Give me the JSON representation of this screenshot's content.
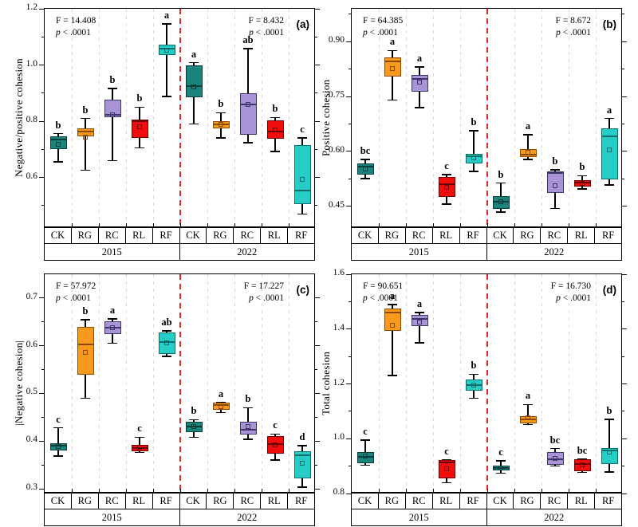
{
  "figure": {
    "treatments": [
      "CK",
      "RG",
      "RC",
      "RL",
      "RF"
    ],
    "years": [
      "2015",
      "2022"
    ],
    "colors": {
      "CK": {
        "fill": "#1a837b",
        "edge": "#093e3a"
      },
      "RG": {
        "fill": "#f8991d",
        "edge": "#8a4a00"
      },
      "RC": {
        "fill": "#a893d6",
        "edge": "#3f3566"
      },
      "RL": {
        "fill": "#f20d0d",
        "edge": "#6e0000"
      },
      "RF": {
        "fill": "#26ccc6",
        "edge": "#0d6e6a"
      }
    },
    "separator_color": "#e02b2b",
    "gridline_color": "#d8d8d8"
  },
  "chart_data": [
    {
      "type": "boxplot",
      "panel_label": "(a)",
      "ylabel": "Negative/positive cohesion",
      "ymin": 0.42,
      "ymax": 1.2,
      "yticks": [
        {
          "v": 0.6,
          "label": "0.6"
        },
        {
          "v": 0.8,
          "label": "0.8"
        },
        {
          "v": 1.0,
          "label": "1.0"
        },
        {
          "v": 1.2,
          "label": "1.2"
        }
      ],
      "stats_left": {
        "F": "F = 14.408",
        "p": "p < .0001"
      },
      "stats_right": {
        "F": "F = 8.432",
        "p": "p < .0001"
      },
      "groups": [
        "2015",
        "2022"
      ],
      "categories": [
        "CK",
        "RG",
        "RC",
        "RL",
        "RF",
        "CK",
        "RG",
        "RC",
        "RL",
        "RF"
      ],
      "boxes": [
        {
          "year": "2015",
          "treatment": "CK",
          "whisker_low": 0.655,
          "q1": 0.7,
          "median": 0.735,
          "q3": 0.746,
          "whisker_high": 0.756,
          "mean": 0.716,
          "letter": "b"
        },
        {
          "year": "2015",
          "treatment": "RG",
          "whisker_low": 0.625,
          "q1": 0.747,
          "median": 0.764,
          "q3": 0.774,
          "whisker_high": 0.81,
          "mean": 0.742,
          "letter": "b"
        },
        {
          "year": "2015",
          "treatment": "RC",
          "whisker_low": 0.66,
          "q1": 0.814,
          "median": 0.822,
          "q3": 0.876,
          "whisker_high": 0.916,
          "mean": 0.82,
          "letter": "b"
        },
        {
          "year": "2015",
          "treatment": "RL",
          "whisker_low": 0.705,
          "q1": 0.74,
          "median": 0.8,
          "q3": 0.806,
          "whisker_high": 0.85,
          "mean": 0.778,
          "letter": "b"
        },
        {
          "year": "2015",
          "treatment": "RF",
          "whisker_low": 0.888,
          "q1": 1.035,
          "median": 1.058,
          "q3": 1.072,
          "whisker_high": 1.146,
          "mean": 1.052,
          "letter": "a"
        },
        {
          "year": "2022",
          "treatment": "CK",
          "whisker_low": 0.79,
          "q1": 0.886,
          "median": 0.924,
          "q3": 1.0,
          "whisker_high": 1.008,
          "mean": 0.92,
          "letter": "a"
        },
        {
          "year": "2022",
          "treatment": "RG",
          "whisker_low": 0.74,
          "q1": 0.775,
          "median": 0.79,
          "q3": 0.801,
          "whisker_high": 0.83,
          "mean": 0.787,
          "letter": "b"
        },
        {
          "year": "2022",
          "treatment": "RC",
          "whisker_low": 0.724,
          "q1": 0.752,
          "median": 0.86,
          "q3": 0.9,
          "whisker_high": 1.058,
          "mean": 0.858,
          "letter": "ab"
        },
        {
          "year": "2022",
          "treatment": "RL",
          "whisker_low": 0.693,
          "q1": 0.738,
          "median": 0.763,
          "q3": 0.803,
          "whisker_high": 0.813,
          "mean": 0.768,
          "letter": "b"
        },
        {
          "year": "2022",
          "treatment": "RF",
          "whisker_low": 0.47,
          "q1": 0.505,
          "median": 0.553,
          "q3": 0.715,
          "whisker_high": 0.74,
          "mean": 0.593,
          "letter": "c"
        }
      ]
    },
    {
      "type": "boxplot",
      "panel_label": "(b)",
      "ylabel": "Positive cohesion",
      "ymin": 0.39,
      "ymax": 0.99,
      "yticks": [
        {
          "v": 0.45,
          "label": "0.45"
        },
        {
          "v": 0.6,
          "label": "0.60"
        },
        {
          "v": 0.75,
          "label": "0.75"
        },
        {
          "v": 0.9,
          "label": "0.90"
        }
      ],
      "stats_left": {
        "F": "F = 64.385",
        "p": "p < .0001"
      },
      "stats_right": {
        "F": "F = 8.672",
        "p": "p < .0001"
      },
      "groups": [
        "2015",
        "2022"
      ],
      "categories": [
        "CK",
        "RG",
        "RC",
        "RL",
        "RF",
        "CK",
        "RG",
        "RC",
        "RL",
        "RF"
      ],
      "boxes": [
        {
          "year": "2015",
          "treatment": "CK",
          "whisker_low": 0.525,
          "q1": 0.536,
          "median": 0.557,
          "q3": 0.566,
          "whisker_high": 0.578,
          "mean": 0.551,
          "letter": "bc"
        },
        {
          "year": "2015",
          "treatment": "RG",
          "whisker_low": 0.74,
          "q1": 0.805,
          "median": 0.846,
          "q3": 0.856,
          "whisker_high": 0.876,
          "mean": 0.826,
          "letter": "a"
        },
        {
          "year": "2015",
          "treatment": "RC",
          "whisker_low": 0.72,
          "q1": 0.764,
          "median": 0.799,
          "q3": 0.81,
          "whisker_high": 0.831,
          "mean": 0.789,
          "letter": "a"
        },
        {
          "year": "2015",
          "treatment": "RL",
          "whisker_low": 0.455,
          "q1": 0.474,
          "median": 0.509,
          "q3": 0.53,
          "whisker_high": 0.536,
          "mean": 0.501,
          "letter": "c"
        },
        {
          "year": "2015",
          "treatment": "RF",
          "whisker_low": 0.545,
          "q1": 0.566,
          "median": 0.586,
          "q3": 0.594,
          "whisker_high": 0.656,
          "mean": 0.581,
          "letter": "b"
        },
        {
          "year": "2022",
          "treatment": "CK",
          "whisker_low": 0.434,
          "q1": 0.442,
          "median": 0.463,
          "q3": 0.477,
          "whisker_high": 0.513,
          "mean": 0.461,
          "letter": "b"
        },
        {
          "year": "2022",
          "treatment": "RG",
          "whisker_low": 0.578,
          "q1": 0.584,
          "median": 0.591,
          "q3": 0.606,
          "whisker_high": 0.645,
          "mean": 0.597,
          "letter": "a"
        },
        {
          "year": "2022",
          "treatment": "RC",
          "whisker_low": 0.444,
          "q1": 0.486,
          "median": 0.541,
          "q3": 0.546,
          "whisker_high": 0.549,
          "mean": 0.504,
          "letter": "b"
        },
        {
          "year": "2022",
          "treatment": "RL",
          "whisker_low": 0.497,
          "q1": 0.504,
          "median": 0.514,
          "q3": 0.521,
          "whisker_high": 0.533,
          "mean": 0.512,
          "letter": "b"
        },
        {
          "year": "2022",
          "treatment": "RF",
          "whisker_low": 0.508,
          "q1": 0.524,
          "median": 0.64,
          "q3": 0.662,
          "whisker_high": 0.69,
          "mean": 0.603,
          "letter": "a"
        }
      ]
    },
    {
      "type": "boxplot",
      "panel_label": "(c)",
      "ylabel": "|Negative cohesion|",
      "ymin": 0.29,
      "ymax": 0.75,
      "yticks": [
        {
          "v": 0.3,
          "label": "0.3"
        },
        {
          "v": 0.4,
          "label": "0.4"
        },
        {
          "v": 0.5,
          "label": "0.5"
        },
        {
          "v": 0.6,
          "label": "0.6"
        },
        {
          "v": 0.7,
          "label": "0.7"
        }
      ],
      "stats_left": {
        "F": "F = 57.972",
        "p": "p < .0001"
      },
      "stats_right": {
        "F": "F = 17.227",
        "p": "p < .0001"
      },
      "groups": [
        "2015",
        "2022"
      ],
      "categories": [
        "CK",
        "RG",
        "RC",
        "RL",
        "RF",
        "CK",
        "RG",
        "RC",
        "RL",
        "RF"
      ],
      "boxes": [
        {
          "year": "2015",
          "treatment": "CK",
          "whisker_low": 0.369,
          "q1": 0.38,
          "median": 0.39,
          "q3": 0.396,
          "whisker_high": 0.428,
          "mean": 0.388,
          "letter": "c"
        },
        {
          "year": "2015",
          "treatment": "RG",
          "whisker_low": 0.49,
          "q1": 0.54,
          "median": 0.602,
          "q3": 0.64,
          "whisker_high": 0.655,
          "mean": 0.585,
          "letter": "b"
        },
        {
          "year": "2015",
          "treatment": "RC",
          "whisker_low": 0.605,
          "q1": 0.624,
          "median": 0.638,
          "q3": 0.652,
          "whisker_high": 0.656,
          "mean": 0.637,
          "letter": "a"
        },
        {
          "year": "2015",
          "treatment": "RL",
          "whisker_low": 0.376,
          "q1": 0.379,
          "median": 0.385,
          "q3": 0.392,
          "whisker_high": 0.408,
          "mean": 0.386,
          "letter": "c"
        },
        {
          "year": "2015",
          "treatment": "RF",
          "whisker_low": 0.578,
          "q1": 0.583,
          "median": 0.608,
          "q3": 0.628,
          "whisker_high": 0.631,
          "mean": 0.605,
          "letter": "ab"
        },
        {
          "year": "2022",
          "treatment": "CK",
          "whisker_low": 0.408,
          "q1": 0.419,
          "median": 0.431,
          "q3": 0.44,
          "whisker_high": 0.445,
          "mean": 0.43,
          "letter": "b"
        },
        {
          "year": "2022",
          "treatment": "RG",
          "whisker_low": 0.46,
          "q1": 0.465,
          "median": 0.476,
          "q3": 0.48,
          "whisker_high": 0.481,
          "mean": 0.472,
          "letter": "a"
        },
        {
          "year": "2022",
          "treatment": "RC",
          "whisker_low": 0.404,
          "q1": 0.414,
          "median": 0.424,
          "q3": 0.44,
          "whisker_high": 0.47,
          "mean": 0.429,
          "letter": "b"
        },
        {
          "year": "2022",
          "treatment": "RL",
          "whisker_low": 0.36,
          "q1": 0.374,
          "median": 0.394,
          "q3": 0.41,
          "whisker_high": 0.415,
          "mean": 0.392,
          "letter": "c"
        },
        {
          "year": "2022",
          "treatment": "RF",
          "whisker_low": 0.303,
          "q1": 0.322,
          "median": 0.37,
          "q3": 0.378,
          "whisker_high": 0.39,
          "mean": 0.352,
          "letter": "d"
        }
      ]
    },
    {
      "type": "boxplot",
      "panel_label": "(d)",
      "ylabel": "Total cohesion",
      "ymin": 0.8,
      "ymax": 1.6,
      "yticks": [
        {
          "v": 0.8,
          "label": "0.8"
        },
        {
          "v": 1.0,
          "label": "1.0"
        },
        {
          "v": 1.2,
          "label": "1.2"
        },
        {
          "v": 1.4,
          "label": "1.4"
        },
        {
          "v": 1.6,
          "label": "1.6"
        }
      ],
      "stats_left": {
        "F": "F = 90.651",
        "p": "p < .0001"
      },
      "stats_right": {
        "F": "F = 16.730",
        "p": "p < .0001"
      },
      "groups": [
        "2015",
        "2022"
      ],
      "categories": [
        "CK",
        "RG",
        "RC",
        "RL",
        "RF",
        "CK",
        "RG",
        "RC",
        "RL",
        "RF"
      ],
      "boxes": [
        {
          "year": "2015",
          "treatment": "CK",
          "whisker_low": 0.904,
          "q1": 0.911,
          "median": 0.934,
          "q3": 0.952,
          "whisker_high": 0.995,
          "mean": 0.934,
          "letter": "c"
        },
        {
          "year": "2015",
          "treatment": "RG",
          "whisker_low": 1.23,
          "q1": 1.394,
          "median": 1.46,
          "q3": 1.476,
          "whisker_high": 1.49,
          "mean": 1.413,
          "letter": "a"
        },
        {
          "year": "2015",
          "treatment": "RC",
          "whisker_low": 1.35,
          "q1": 1.41,
          "median": 1.437,
          "q3": 1.452,
          "whisker_high": 1.461,
          "mean": 1.424,
          "letter": "a"
        },
        {
          "year": "2015",
          "treatment": "RL",
          "whisker_low": 0.84,
          "q1": 0.856,
          "median": 0.914,
          "q3": 0.921,
          "whisker_high": 0.923,
          "mean": 0.889,
          "letter": "c"
        },
        {
          "year": "2015",
          "treatment": "RF",
          "whisker_low": 1.148,
          "q1": 1.175,
          "median": 1.196,
          "q3": 1.215,
          "whisker_high": 1.235,
          "mean": 1.194,
          "letter": "b"
        },
        {
          "year": "2022",
          "treatment": "CK",
          "whisker_low": 0.874,
          "q1": 0.884,
          "median": 0.893,
          "q3": 0.901,
          "whisker_high": 0.92,
          "mean": 0.892,
          "letter": "c"
        },
        {
          "year": "2022",
          "treatment": "RG",
          "whisker_low": 1.052,
          "q1": 1.056,
          "median": 1.072,
          "q3": 1.082,
          "whisker_high": 1.125,
          "mean": 1.074,
          "letter": "a"
        },
        {
          "year": "2022",
          "treatment": "RC",
          "whisker_low": 0.9,
          "q1": 0.906,
          "median": 0.924,
          "q3": 0.95,
          "whisker_high": 0.964,
          "mean": 0.927,
          "letter": "bc"
        },
        {
          "year": "2022",
          "treatment": "RL",
          "whisker_low": 0.877,
          "q1": 0.881,
          "median": 0.907,
          "q3": 0.924,
          "whisker_high": 0.926,
          "mean": 0.904,
          "letter": "bc"
        },
        {
          "year": "2022",
          "treatment": "RF",
          "whisker_low": 0.879,
          "q1": 0.908,
          "median": 0.957,
          "q3": 0.965,
          "whisker_high": 1.07,
          "mean": 0.951,
          "letter": "b"
        }
      ]
    }
  ]
}
